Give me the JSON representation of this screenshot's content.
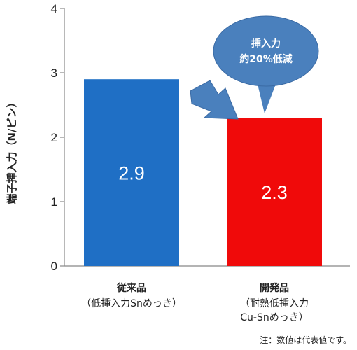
{
  "chart_data": {
    "type": "bar",
    "title": "",
    "ylabel": "端子挿入力（N/ピン）",
    "xlabel": "",
    "ylim": [
      0,
      4
    ],
    "yticks": [
      "0",
      "1",
      "2",
      "3",
      "4"
    ],
    "grid": false,
    "legend": "none",
    "categories": [
      {
        "main": "従来品",
        "sub": [
          "（低挿入力Snめっき）"
        ]
      },
      {
        "main": "開発品",
        "sub": [
          "（耐熱低挿入力",
          "Cu-Snめっき）"
        ]
      }
    ],
    "values": [
      2.9,
      2.3
    ],
    "value_labels": [
      "2.9",
      "2.3"
    ],
    "colors": [
      "#1f6fc5",
      "#f00a0a"
    ],
    "annotation": {
      "lines": [
        "挿入力",
        "約20%低減"
      ],
      "bubble_color": "#4a80bd",
      "arrow_color": "#4a80bd"
    }
  },
  "note": "注：数値は代表値です。"
}
